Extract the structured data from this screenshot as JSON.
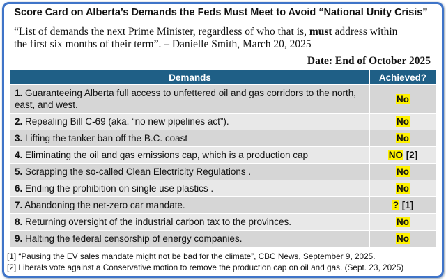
{
  "header": {
    "title": "Score Card on Alberta’s Demands the Feds Must Meet to Avoid “National Unity Crisis”",
    "quote": [
      "“List of demands the next Prime Minister, regardless of who that is, ",
      "must",
      " address within the first six months of their term”. – Danielle Smith, March 20, 2025"
    ],
    "date": {
      "label": "Date",
      "value": ": End of October 2025"
    }
  },
  "table": {
    "columns": [
      "Demands",
      "Achieved?"
    ],
    "rows": [
      {
        "num": "1.",
        "text": " Guaranteeing Alberta full access to unfettered oil and gas corridors to the north, east, and west.",
        "status": "No"
      },
      {
        "num": "2.",
        "text": " Repealing Bill C-69 (aka. “no new pipelines act”).",
        "status": "No"
      },
      {
        "num": "3.",
        "text": " Lifting the tanker ban off the B.C. coast",
        "status": "No"
      },
      {
        "num": "4.",
        "text": " Eliminating the oil and gas emissions cap, which is a production cap",
        "status": "NO",
        "note": "[2]"
      },
      {
        "num": "5.",
        "text": " Scrapping the so-called Clean Electricity Regulations .",
        "status": "No"
      },
      {
        "num": "6.",
        "text": " Ending the prohibition on single use plastics .",
        "status": "No"
      },
      {
        "num": "7.",
        "text": " Abandoning the net-zero car mandate.",
        "status": "?",
        "note": "[1]"
      },
      {
        "num": "8.",
        "text": " Returning oversight of the industrial carbon tax to the provinces.",
        "status": "No"
      },
      {
        "num": "9.",
        "text": " Halting the federal censorship of energy companies.",
        "status": "No"
      }
    ]
  },
  "footnotes": [
    "[1] “Pausing the EV sales mandate might not be bad for the climate”, CBC News, September 9, 2025.",
    "[2] Liberals vote against a Conservative motion to remove the production cap on oil and gas. (Sept. 23, 2025)"
  ]
}
